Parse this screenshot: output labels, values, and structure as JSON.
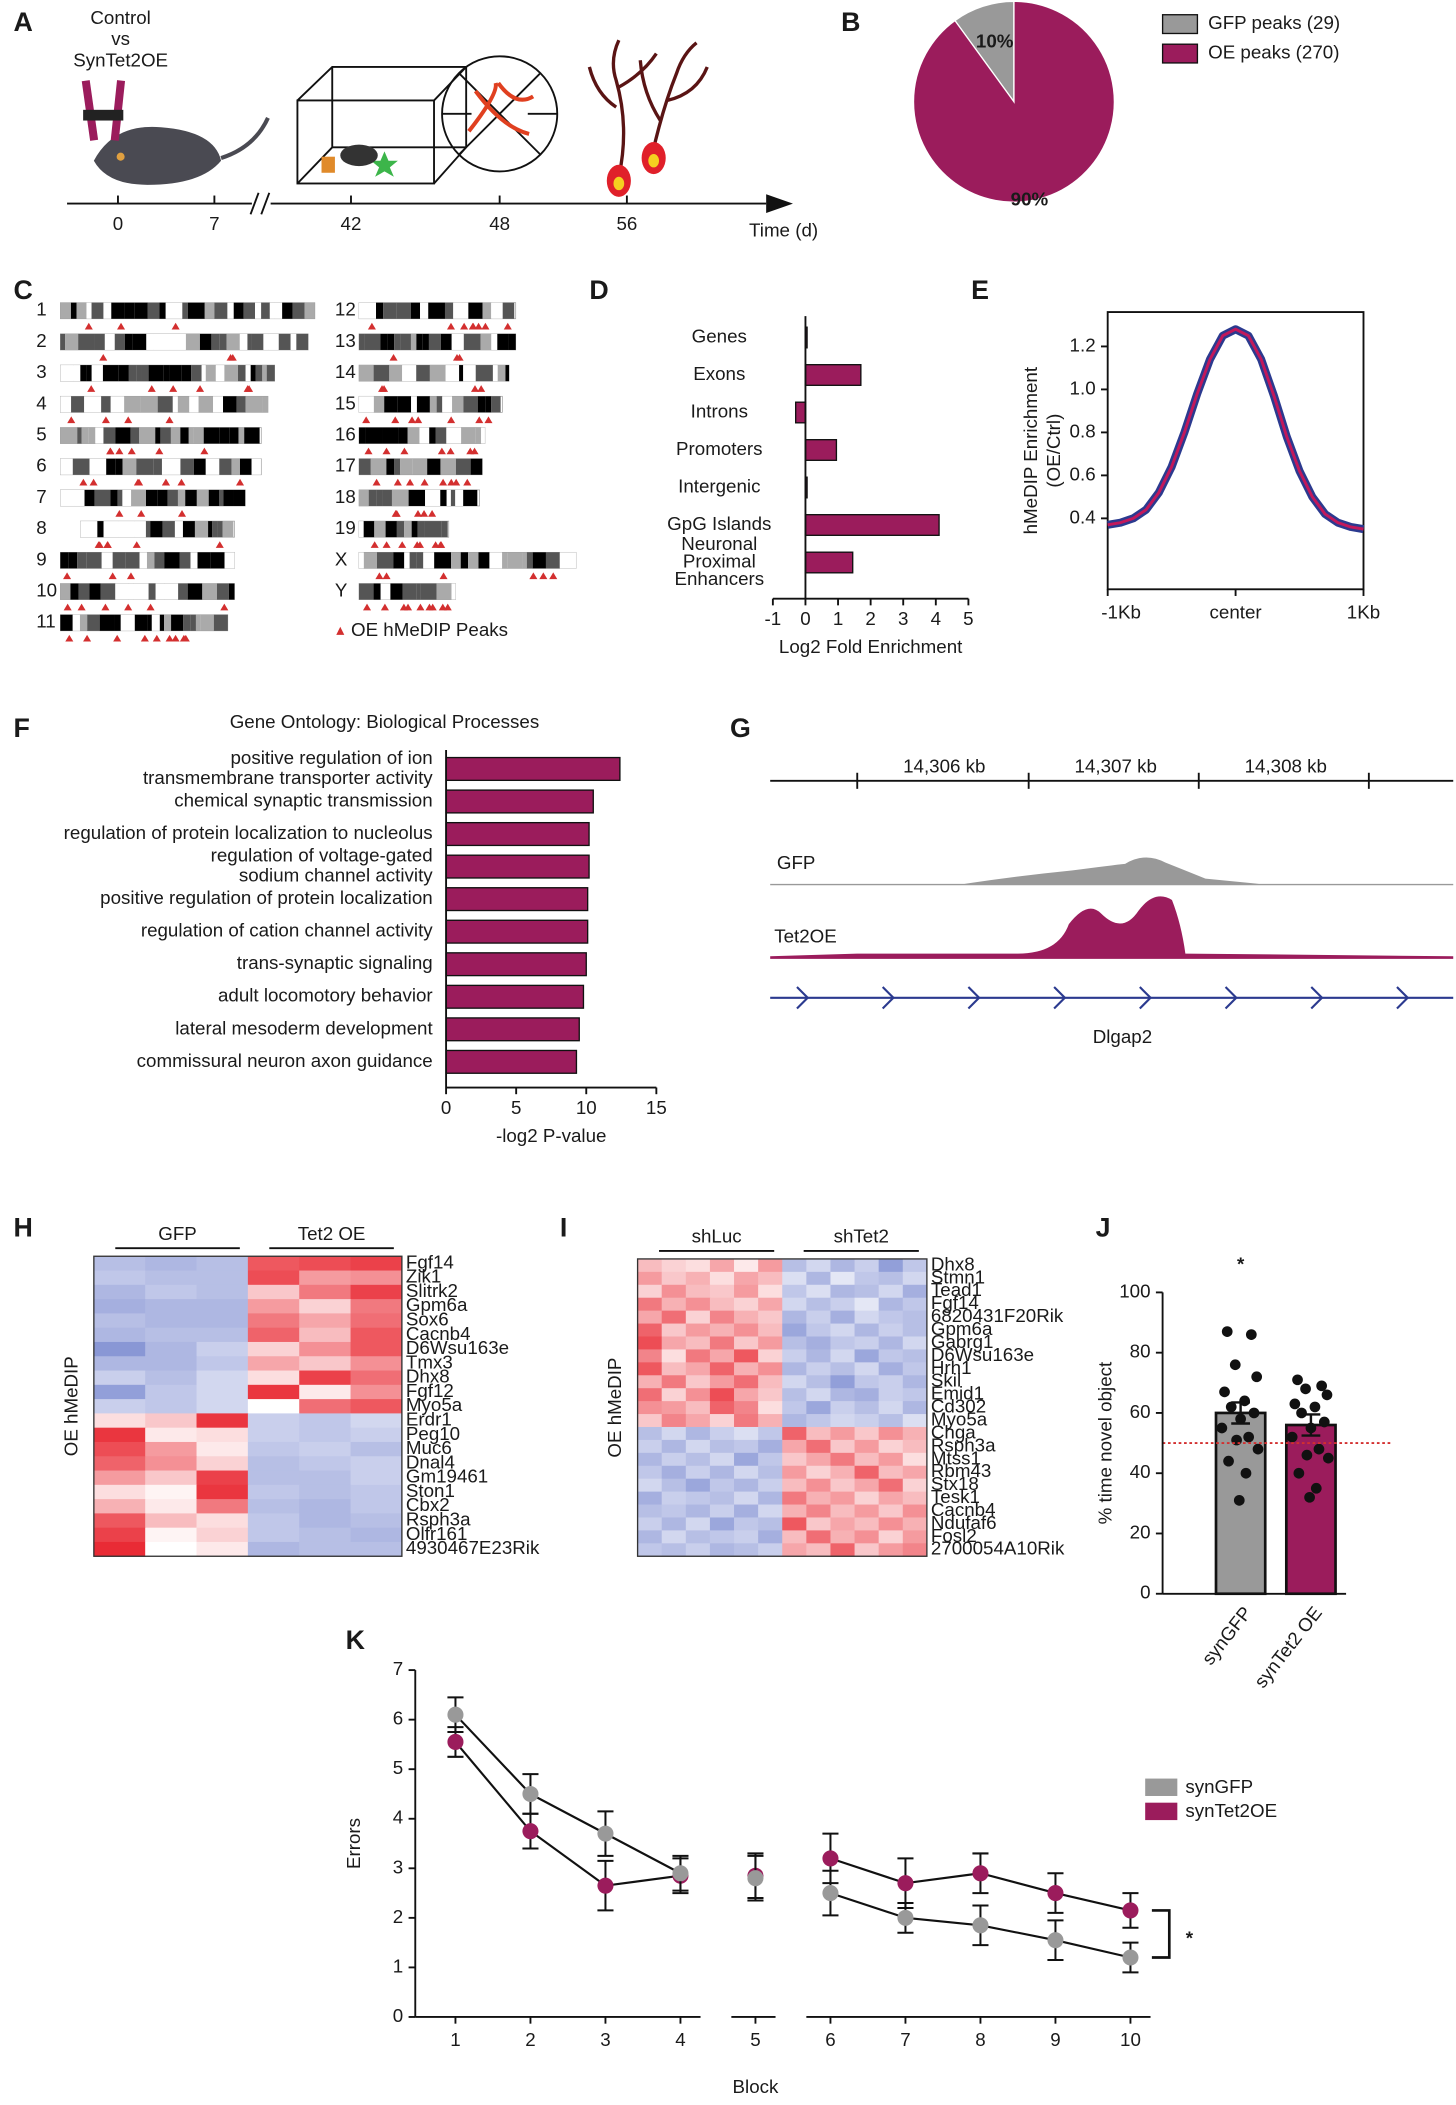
{
  "panel_labels": [
    "A",
    "B",
    "C",
    "D",
    "E",
    "F",
    "G",
    "H",
    "I",
    "J",
    "K"
  ],
  "timeline": {
    "cohort_label": "Control\nvs\nSynTet2OE",
    "days": [
      0,
      7,
      42,
      48,
      56
    ],
    "axis_label": "Time (d)"
  },
  "karyotype": {
    "chromosomes": [
      "1",
      "2",
      "3",
      "4",
      "5",
      "6",
      "7",
      "8",
      "9",
      "10",
      "11",
      "12",
      "13",
      "14",
      "15",
      "16",
      "17",
      "18",
      "19",
      "X",
      "Y"
    ],
    "legend": "OE hMeDIP Peaks"
  },
  "genome_track": {
    "coordinates": [
      "14,306 kb",
      "14,307 kb",
      "14,308 kb"
    ],
    "tracks": [
      "GFP",
      "Tet2OE"
    ],
    "gene": "Dlgap2"
  },
  "chart_data": [
    {
      "type": "pie",
      "categories": [
        "GFP peaks (29)",
        "OE peaks (270)"
      ],
      "values": [
        10,
        90
      ],
      "value_labels": [
        "10%",
        "90%"
      ],
      "colors": [
        "#999999",
        "#9b1c5c"
      ]
    },
    {
      "type": "bar",
      "orientation": "horizontal",
      "categories": [
        "Genes",
        "Exons",
        "Introns",
        "Promoters",
        "Intergenic",
        "GpG Islands",
        "Neuronal\nProximal\nEnhancers"
      ],
      "values": [
        0.05,
        1.7,
        -0.3,
        0.95,
        0.05,
        4.1,
        1.45
      ],
      "color": "#9b1c5c",
      "xlabel": "Log2 Fold Enrichment",
      "xlim": [
        -1,
        5
      ],
      "xticks": [
        -1,
        0,
        1,
        2,
        3,
        4,
        5
      ]
    },
    {
      "type": "line",
      "ylabel": "hMeDIP Enrichment\n(OE/Ctrl)",
      "x": [
        -1000,
        -900,
        -800,
        -700,
        -600,
        -500,
        -400,
        -300,
        -200,
        -100,
        0,
        100,
        200,
        300,
        400,
        500,
        600,
        700,
        800,
        900,
        1000
      ],
      "values": [
        0.37,
        0.38,
        0.4,
        0.44,
        0.52,
        0.64,
        0.8,
        0.98,
        1.14,
        1.25,
        1.28,
        1.25,
        1.14,
        0.97,
        0.78,
        0.62,
        0.5,
        0.42,
        0.38,
        0.36,
        0.35
      ],
      "color": "#c2185b",
      "outline_color": "#2b3a8f",
      "xlim": [
        -1000,
        1000
      ],
      "xticks": [
        {
          "value": -1000,
          "label": "-1Kb"
        },
        {
          "value": 0,
          "label": "center"
        },
        {
          "value": 1000,
          "label": "1Kb"
        }
      ],
      "ylim": [
        0.07,
        1.36
      ],
      "yticks": [
        0.4,
        0.6,
        0.8,
        {
          "value": 1,
          "label": "1.0"
        },
        1.2
      ]
    },
    {
      "type": "bar",
      "orientation": "horizontal",
      "title": "Gene Ontology: Biological Processes",
      "categories": [
        "positive regulation of ion\ntransmembrane transporter activity",
        "chemical synaptic transmission",
        "regulation of protein localization to nucleolus",
        "regulation of voltage-gated\nsodium channel activity",
        "positive regulation of protein localization",
        "regulation of cation channel activity",
        "trans-synaptic signaling",
        "adult locomotory behavior",
        "lateral mesoderm development",
        "commissural neuron axon guidance"
      ],
      "values": [
        12.4,
        10.5,
        10.2,
        10.2,
        10.1,
        10.1,
        10.0,
        9.8,
        9.5,
        9.3
      ],
      "color": "#9b1c5c",
      "xlabel": "-log2 P-value",
      "xlim": [
        0,
        15
      ],
      "xticks": [
        0,
        5,
        10,
        15
      ]
    },
    {
      "type": "heatmap",
      "ylabel": "OE hMeDIP",
      "groups": [
        "GFP",
        "Tet2 OE"
      ],
      "zlim": [
        -2,
        2
      ],
      "genes": [
        "Fgf14",
        "Zik1",
        "Slitrk2",
        "Gpm6a",
        "Sox6",
        "Cacnb4",
        "D6Wsu163e",
        "Tmx3",
        "Dhx8",
        "Fgf12",
        "Myo5a",
        "Erdr1",
        "Peg10",
        "Muc6",
        "Dnal4",
        "Gm19461",
        "Ston1",
        "Cbx2",
        "Rsph3a",
        "Olfr161",
        "4930467E23Rik"
      ],
      "values": [
        [
          -0.8,
          -0.9,
          -0.8,
          1.5,
          1.6,
          1.7
        ],
        [
          -0.7,
          -0.8,
          -0.8,
          1.6,
          0.9,
          1.0
        ],
        [
          -0.9,
          -0.7,
          -0.8,
          0.5,
          1.2,
          1.7
        ],
        [
          -1.0,
          -0.9,
          -0.9,
          0.9,
          0.4,
          1.2
        ],
        [
          -0.8,
          -0.9,
          -0.9,
          1.2,
          0.8,
          1.3
        ],
        [
          -0.9,
          -0.8,
          -0.8,
          1.4,
          0.6,
          1.5
        ],
        [
          -1.3,
          -0.9,
          -0.6,
          0.4,
          1.0,
          1.5
        ],
        [
          -0.9,
          -0.9,
          -0.7,
          0.8,
          0.5,
          1.0
        ],
        [
          -0.6,
          -0.8,
          -0.5,
          0.3,
          1.7,
          1.3
        ],
        [
          -1.2,
          -0.7,
          -0.5,
          1.8,
          0.2,
          1.0
        ],
        [
          -0.6,
          -0.7,
          -0.5,
          0.0,
          1.3,
          1.5
        ],
        [
          0.3,
          0.5,
          1.8,
          -0.6,
          -0.7,
          -0.5
        ],
        [
          1.8,
          0.2,
          0.3,
          -0.6,
          -0.7,
          -0.6
        ],
        [
          1.6,
          0.9,
          0.2,
          -0.7,
          -0.6,
          -0.8
        ],
        [
          1.4,
          1.0,
          0.4,
          -0.8,
          -0.7,
          -0.6
        ],
        [
          0.9,
          0.5,
          1.7,
          -0.8,
          -0.8,
          -0.6
        ],
        [
          0.3,
          0.1,
          1.8,
          -0.7,
          -0.8,
          -0.7
        ],
        [
          0.7,
          0.2,
          1.2,
          -0.8,
          -0.9,
          -0.7
        ],
        [
          1.5,
          0.6,
          0.3,
          -0.7,
          -0.9,
          -0.8
        ],
        [
          1.7,
          0.1,
          0.4,
          -0.7,
          -0.8,
          -0.9
        ],
        [
          1.9,
          0.0,
          0.2,
          -0.9,
          -0.8,
          -0.8
        ]
      ]
    },
    {
      "type": "heatmap",
      "ylabel": "OE hMeDIP",
      "groups": [
        "shLuc",
        "shTet2"
      ],
      "zlim": [
        -2,
        2
      ],
      "genes": [
        "Dhx8",
        "Stmn1",
        "Tead1",
        "Fgf14",
        "6820431F20Rik",
        "Gpm6a",
        "Gabrg1",
        "D6Wsu163e",
        "Hrh1",
        "Skil",
        "Emid1",
        "Cd302",
        "Myo5a",
        "Chga",
        "Rsph3a",
        "Mtss1",
        "Rbm43",
        "Stx18",
        "Tesk1",
        "Cacnb4",
        "Ndufaf6",
        "Fosl2",
        "2700054A10Rik"
      ],
      "values": [
        [
          0.6,
          0.4,
          0.3,
          0.8,
          0.2,
          0.9,
          -0.8,
          -0.5,
          -0.9,
          -0.6,
          -1.2,
          -0.7
        ],
        [
          0.9,
          0.5,
          0.7,
          0.3,
          0.8,
          0.6,
          -0.4,
          -0.9,
          -0.3,
          -0.7,
          -0.8,
          -0.5
        ],
        [
          0.4,
          1.0,
          0.6,
          0.5,
          0.9,
          0.3,
          -0.7,
          -0.4,
          -0.9,
          -0.8,
          -0.5,
          -1.0
        ],
        [
          1.2,
          0.7,
          1.0,
          0.6,
          0.4,
          0.8,
          -0.5,
          -0.8,
          -0.6,
          -0.3,
          -0.9,
          -0.7
        ],
        [
          0.8,
          1.3,
          0.4,
          1.1,
          0.7,
          0.5,
          -0.9,
          -0.6,
          -1.0,
          -0.5,
          -0.7,
          -0.8
        ],
        [
          1.4,
          0.5,
          0.9,
          0.7,
          1.0,
          0.6,
          -1.1,
          -0.7,
          -0.5,
          -0.9,
          -0.6,
          -0.8
        ],
        [
          1.6,
          0.8,
          0.6,
          1.2,
          0.5,
          0.9,
          -0.8,
          -1.0,
          -0.7,
          -0.6,
          -0.9,
          -0.5
        ],
        [
          1.1,
          0.3,
          1.2,
          0.8,
          1.5,
          0.4,
          -0.6,
          -0.9,
          -0.5,
          -1.1,
          -0.7,
          -0.8
        ],
        [
          1.5,
          0.6,
          0.8,
          1.4,
          0.7,
          1.0,
          -0.9,
          -0.6,
          -0.8,
          -0.5,
          -1.0,
          -0.7
        ],
        [
          0.7,
          1.2,
          0.5,
          0.9,
          1.3,
          0.6,
          -0.5,
          -0.8,
          -1.2,
          -0.7,
          -0.6,
          -0.9
        ],
        [
          1.3,
          0.4,
          1.0,
          1.6,
          0.8,
          0.5,
          -0.8,
          -0.5,
          -0.9,
          -1.0,
          -0.6,
          -0.7
        ],
        [
          1.0,
          0.9,
          0.6,
          1.4,
          1.1,
          0.3,
          -0.7,
          -1.1,
          -0.6,
          -0.8,
          -0.5,
          -0.9
        ],
        [
          0.5,
          1.1,
          0.8,
          0.4,
          1.2,
          0.7,
          -0.9,
          -0.7,
          -0.5,
          -0.6,
          -0.8,
          -0.4
        ],
        [
          -0.8,
          -0.5,
          -0.9,
          -0.6,
          -0.4,
          -0.7,
          1.4,
          0.6,
          0.9,
          0.5,
          1.0,
          0.7
        ],
        [
          -0.6,
          -0.9,
          -0.5,
          -0.8,
          -0.7,
          -1.0,
          0.8,
          1.3,
          0.5,
          0.9,
          0.4,
          0.6
        ],
        [
          -0.9,
          -0.6,
          -0.8,
          -0.5,
          -1.1,
          -0.7,
          0.5,
          0.8,
          1.2,
          0.6,
          0.9,
          0.3
        ],
        [
          -0.7,
          -1.0,
          -0.6,
          -0.9,
          -0.5,
          -0.8,
          0.9,
          0.4,
          0.7,
          1.4,
          0.6,
          0.8
        ],
        [
          -0.5,
          -0.8,
          -1.1,
          -0.7,
          -0.9,
          -0.6,
          0.6,
          1.0,
          0.5,
          0.8,
          1.3,
          0.4
        ],
        [
          -1.0,
          -0.6,
          -0.7,
          -0.8,
          -0.5,
          -0.9,
          1.2,
          0.7,
          0.9,
          0.4,
          0.8,
          0.6
        ],
        [
          -0.8,
          -0.7,
          -0.9,
          -0.6,
          -1.0,
          -0.5,
          0.7,
          1.1,
          0.6,
          0.9,
          0.5,
          1.0
        ],
        [
          -0.6,
          -0.9,
          -0.5,
          -1.1,
          -0.7,
          -0.8,
          1.5,
          0.5,
          0.8,
          0.6,
          1.0,
          0.7
        ],
        [
          -0.9,
          -0.5,
          -0.8,
          -0.7,
          -0.6,
          -1.0,
          0.6,
          1.3,
          0.7,
          1.0,
          0.4,
          0.9
        ],
        [
          -0.7,
          -0.8,
          -0.6,
          -0.9,
          -0.8,
          -0.6,
          0.8,
          0.6,
          1.4,
          0.5,
          0.9,
          1.1
        ]
      ]
    },
    {
      "type": "bar",
      "orientation": "vertical",
      "ylabel": "% time novel object",
      "categories": [
        "synGFP",
        "synTet2 OE"
      ],
      "values": [
        60,
        56
      ],
      "errors": [
        3.5,
        3.5
      ],
      "points": [
        [
          87,
          86,
          76,
          72,
          67,
          64,
          62,
          60,
          58,
          55,
          52,
          51,
          48,
          44,
          40,
          31
        ],
        [
          71,
          69,
          68,
          66,
          63,
          62,
          60,
          57,
          55,
          52,
          48,
          46,
          45,
          40,
          35,
          32
        ]
      ],
      "colors": [
        "#999999",
        "#9b1c5c"
      ],
      "reference_line": 50,
      "significance": "*",
      "ylim": [
        0,
        100
      ],
      "yticks": [
        0,
        20,
        40,
        60,
        80,
        100
      ]
    },
    {
      "type": "line",
      "xlabel": "Block",
      "ylabel": "Errors",
      "categories": [
        "1",
        "2",
        "3",
        "4",
        "5",
        "6",
        "7",
        "8",
        "9",
        "10"
      ],
      "segments": [
        [
          0,
          3
        ],
        [
          4,
          4
        ],
        [
          5,
          9
        ]
      ],
      "significance": "*",
      "series": [
        {
          "name": "synGFP",
          "color": "#999999",
          "values": [
            6.1,
            4.5,
            3.7,
            2.9,
            2.8,
            2.5,
            2.0,
            1.85,
            1.55,
            1.2
          ],
          "errors": [
            0.35,
            0.4,
            0.45,
            0.35,
            0.45,
            0.45,
            0.3,
            0.4,
            0.4,
            0.3
          ]
        },
        {
          "name": "synTet2OE",
          "color": "#9b1c5c",
          "values": [
            5.55,
            3.75,
            2.65,
            2.85,
            2.85,
            3.2,
            2.7,
            2.9,
            2.5,
            2.15
          ],
          "errors": [
            0.3,
            0.35,
            0.5,
            0.35,
            0.45,
            0.5,
            0.5,
            0.4,
            0.4,
            0.35
          ]
        }
      ],
      "ylim": [
        0,
        7
      ],
      "yticks": [
        0,
        1,
        2,
        3,
        4,
        5,
        6,
        7
      ]
    }
  ]
}
